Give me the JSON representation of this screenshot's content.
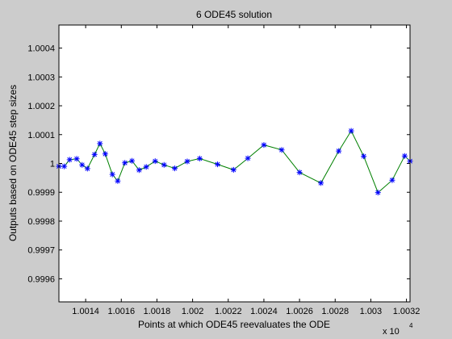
{
  "chart_data": {
    "type": "line",
    "title": "6 ODE45 solution",
    "xlabel": "Points at which ODE45 reevaluates the ODE",
    "ylabel": "Outputs based on ODE45 step sizes",
    "x_multiplier_label": "x 10",
    "x_multiplier_exponent": "4",
    "xlim": [
      10012.5,
      10032.2
    ],
    "ylim": [
      0.99952,
      1.00048
    ],
    "xticks": [
      10014,
      10016,
      10018,
      10020,
      10022,
      10024,
      10026,
      10028,
      10030,
      10032
    ],
    "xtick_labels": [
      "1.0014",
      "1.0016",
      "1.0018",
      "1.002",
      "1.0022",
      "1.0024",
      "1.0026",
      "1.0028",
      "1.003",
      "1.0032"
    ],
    "yticks": [
      0.9996,
      0.9997,
      0.9998,
      0.9999,
      1.0,
      1.0001,
      1.0002,
      1.0003,
      1.0004
    ],
    "ytick_labels": [
      "0.9996",
      "0.9997",
      "0.9998",
      "0.9999",
      "1",
      "1.0001",
      "1.0002",
      "1.0003",
      "1.0004"
    ],
    "grid": false,
    "series": [
      {
        "line_color": "#008000",
        "marker_color": "#0000ff",
        "marker": "asterisk",
        "points": [
          [
            10012.5,
            0.99999
          ],
          [
            10012.8,
            0.99999
          ],
          [
            10013.1,
            1.000013
          ],
          [
            10013.5,
            1.000016
          ],
          [
            10013.8,
            0.999995
          ],
          [
            10014.1,
            0.999982
          ],
          [
            10014.5,
            1.000031
          ],
          [
            10014.8,
            1.000069
          ],
          [
            10015.1,
            1.000033
          ],
          [
            10015.5,
            0.999962
          ],
          [
            10015.8,
            0.999939
          ],
          [
            10016.2,
            1.000002
          ],
          [
            10016.6,
            1.000009
          ],
          [
            10017.0,
            0.999977
          ],
          [
            10017.4,
            0.999988
          ],
          [
            10017.9,
            1.000008
          ],
          [
            10018.4,
            0.999995
          ],
          [
            10019.0,
            0.999983
          ],
          [
            10019.7,
            1.000007
          ],
          [
            10020.4,
            1.000017
          ],
          [
            10021.4,
            0.999997
          ],
          [
            10022.3,
            0.999978
          ],
          [
            10023.1,
            1.000018
          ],
          [
            10024.0,
            1.000064
          ],
          [
            10025.0,
            1.000047
          ],
          [
            10026.0,
            0.999969
          ],
          [
            10027.2,
            0.999932
          ],
          [
            10028.2,
            1.000043
          ],
          [
            10028.9,
            1.000113
          ],
          [
            10029.6,
            1.000025
          ],
          [
            10030.4,
            0.999899
          ],
          [
            10031.2,
            0.999942
          ],
          [
            10031.9,
            1.000026
          ],
          [
            10032.2,
            1.000008
          ]
        ]
      }
    ]
  }
}
